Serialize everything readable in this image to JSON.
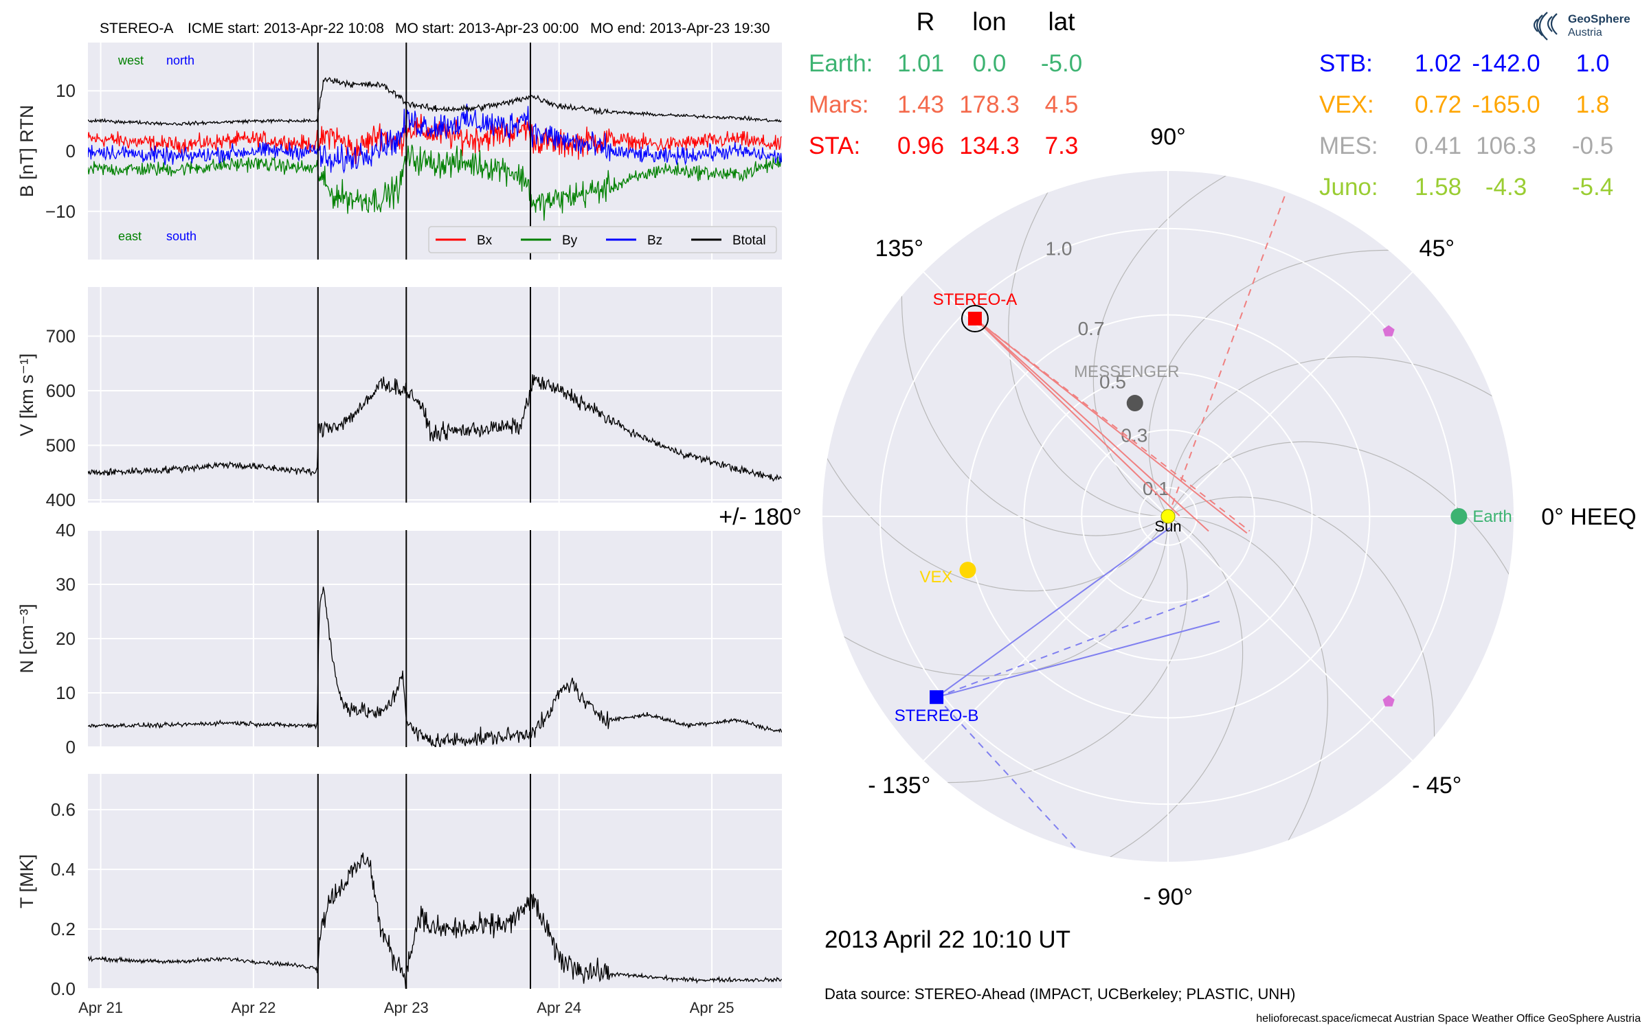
{
  "header": {
    "spacecraft": "STEREO-A",
    "icme_start": "ICME start: 2013-Apr-22 10:08",
    "mo_start": "MO start: 2013-Apr-23 00:00",
    "mo_end": "MO end: 2013-Apr-23 19:30"
  },
  "colors": {
    "bx": "#ff0000",
    "by": "#008000",
    "bz": "#0000ff",
    "btotal": "#000000",
    "earth": "#3cb371",
    "mars": "#f4694b",
    "sta": "#ff0000",
    "stb": "#0000ff",
    "vex": "#ffa500",
    "mes": "#a9a9a9",
    "juno": "#9acd32",
    "sun": "#ffff00",
    "axes_bg": "#eaeaf2"
  },
  "chart_data": [
    {
      "type": "line",
      "panel": "magnetic-field",
      "ylabel": "B [nT] RTN",
      "ylim": [
        -18,
        18
      ],
      "yticks": [
        -10,
        0,
        10
      ],
      "ytick_labels": [
        "−10",
        "0",
        "10"
      ],
      "grid": true,
      "legend_position": "lower-right",
      "annotations": {
        "west": "west",
        "north": "north",
        "east": "east",
        "south": "south"
      },
      "event_lines_hours": [
        34.13,
        48.0,
        67.5
      ],
      "series": [
        {
          "name": "Bx",
          "x_hours": [
            0,
            12,
            24,
            34,
            36,
            40,
            44,
            47,
            48,
            52,
            58,
            64,
            67,
            68,
            72,
            80,
            88,
            100,
            106
          ],
          "values": [
            2,
            1,
            2,
            1,
            3,
            0,
            3,
            1,
            4,
            3,
            2,
            3,
            4,
            2,
            1,
            2,
            1,
            2,
            1
          ]
        },
        {
          "name": "By",
          "x_hours": [
            0,
            12,
            24,
            34,
            36,
            40,
            44,
            47,
            48,
            52,
            58,
            64,
            67,
            68,
            72,
            80,
            88,
            100,
            106
          ],
          "values": [
            -3,
            -3,
            -2,
            -3,
            -7,
            -8,
            -8,
            -6,
            -1,
            -2,
            -2,
            -3,
            -5,
            -9,
            -8,
            -6,
            -3,
            -4,
            -2
          ]
        },
        {
          "name": "Bz",
          "x_hours": [
            0,
            12,
            24,
            34,
            36,
            40,
            44,
            47,
            48,
            52,
            58,
            64,
            67,
            68,
            72,
            80,
            88,
            100,
            106
          ],
          "values": [
            0,
            -1,
            0,
            0,
            -2,
            -1,
            1,
            2,
            5,
            4,
            5,
            4,
            6,
            3,
            2,
            0,
            -1,
            0,
            -1
          ]
        },
        {
          "name": "Btotal",
          "x_hours": [
            0,
            12,
            24,
            34,
            35,
            40,
            44,
            47,
            48,
            52,
            58,
            64,
            67,
            68,
            72,
            80,
            88,
            100,
            106
          ],
          "values": [
            5,
            4.5,
            5,
            5,
            12,
            11,
            11,
            9,
            8,
            7,
            7,
            8,
            9,
            9,
            7.5,
            6.5,
            6,
            5.5,
            5
          ]
        }
      ]
    },
    {
      "type": "line",
      "panel": "speed",
      "ylabel": "V [km s⁻¹]",
      "ylim": [
        395,
        790
      ],
      "yticks": [
        400,
        500,
        600,
        700
      ],
      "grid": true,
      "event_lines_hours": [
        34.13,
        48.0,
        67.5
      ],
      "series": [
        {
          "name": "V",
          "x_hours": [
            0,
            10,
            20,
            30,
            34,
            34.2,
            38,
            42,
            44,
            48,
            50,
            52,
            54,
            60,
            66,
            67.5,
            68,
            70,
            74,
            78,
            84,
            90,
            96,
            102,
            106
          ],
          "values": [
            450,
            455,
            465,
            455,
            450,
            530,
            540,
            580,
            615,
            600,
            580,
            520,
            525,
            530,
            535,
            600,
            620,
            610,
            590,
            560,
            520,
            490,
            470,
            450,
            440
          ]
        }
      ]
    },
    {
      "type": "line",
      "panel": "density",
      "ylabel": "N [cm⁻³]",
      "ylim": [
        0,
        40
      ],
      "yticks": [
        0,
        10,
        20,
        30,
        40
      ],
      "grid": true,
      "event_lines_hours": [
        34.13,
        48.0,
        67.5
      ],
      "series": [
        {
          "name": "N",
          "x_hours": [
            0,
            10,
            20,
            30,
            34,
            34.3,
            35,
            36,
            37,
            38,
            40,
            44,
            46,
            47.5,
            48,
            49,
            52,
            58,
            64,
            67,
            70,
            72,
            74,
            76,
            80,
            86,
            92,
            100,
            106
          ],
          "values": [
            4,
            4,
            4.5,
            4,
            4,
            25,
            30,
            20,
            12,
            8,
            7,
            6,
            9,
            14,
            5,
            3,
            1,
            1.5,
            2,
            2.5,
            5,
            10,
            12,
            8,
            5,
            6,
            4,
            5,
            3
          ]
        }
      ]
    },
    {
      "type": "line",
      "panel": "temperature",
      "ylabel": "T [MK]",
      "ylim": [
        0,
        0.72
      ],
      "yticks": [
        0.0,
        0.2,
        0.4,
        0.6
      ],
      "ytick_labels": [
        "0.0",
        "0.2",
        "0.4",
        "0.6"
      ],
      "xtick_labels": [
        "Apr 21",
        "Apr 22",
        "Apr 23",
        "Apr 24",
        "Apr 25"
      ],
      "xtick_hours": [
        0,
        24,
        48,
        72,
        96
      ],
      "grid": true,
      "event_lines_hours": [
        34.13,
        48.0,
        67.5
      ],
      "series": [
        {
          "name": "T",
          "x_hours": [
            0,
            10,
            20,
            30,
            34,
            34.5,
            36,
            38,
            40,
            42,
            44,
            46,
            48,
            50,
            52,
            58,
            64,
            66,
            67.5,
            69,
            72,
            76,
            80,
            86,
            92,
            100,
            106
          ],
          "values": [
            0.1,
            0.09,
            0.1,
            0.08,
            0.07,
            0.2,
            0.3,
            0.35,
            0.4,
            0.45,
            0.2,
            0.1,
            0.05,
            0.25,
            0.2,
            0.2,
            0.22,
            0.25,
            0.3,
            0.25,
            0.1,
            0.06,
            0.05,
            0.04,
            0.03,
            0.03,
            0.03
          ]
        }
      ]
    },
    {
      "type": "scatter",
      "panel": "heliospheric-orbit-polar",
      "projection": "polar",
      "rlim": [
        0,
        1.2
      ],
      "r_ticks": [
        "0.1",
        "0.3",
        "0.5",
        "0.7",
        "1.0"
      ],
      "r_tick_values": [
        0.1,
        0.3,
        0.5,
        0.7,
        1.0
      ],
      "angle_labels": [
        {
          "deg": 0,
          "label": "0° HEEQ"
        },
        {
          "deg": 45,
          "label": "45°"
        },
        {
          "deg": 90,
          "label": "90°"
        },
        {
          "deg": 135,
          "label": "135°"
        },
        {
          "deg": 180,
          "label": "+/- 180°"
        },
        {
          "deg": -135,
          "label": "- 135°"
        },
        {
          "deg": -90,
          "label": "- 90°"
        },
        {
          "deg": -45,
          "label": "- 45°"
        }
      ],
      "bodies": [
        {
          "name": "Sun",
          "label": "Sun",
          "r": 0.0,
          "lon": 0.0,
          "color": "#ffff00",
          "marker": "circle"
        },
        {
          "name": "Earth",
          "label": "Earth",
          "r": 1.01,
          "lon": 0.0,
          "color": "#3cb371",
          "marker": "circle"
        },
        {
          "name": "STEREO-A",
          "label": "STEREO-A",
          "r": 0.96,
          "lon": 134.3,
          "color": "#ff0000",
          "marker": "square"
        },
        {
          "name": "STEREO-B",
          "label": "STEREO-B",
          "r": 1.02,
          "lon": -142.0,
          "color": "#0000ff",
          "marker": "square"
        },
        {
          "name": "VEX",
          "label": "VEX",
          "r": 0.72,
          "lon": -165.0,
          "color": "#ffd700",
          "marker": "circle"
        },
        {
          "name": "MESSENGER",
          "label": "MESSENGER",
          "r": 0.41,
          "lon": 106.3,
          "color": "#555555",
          "marker": "circle"
        },
        {
          "name": "Juno-1",
          "label": "",
          "r": 1.0,
          "lon": 40.0,
          "color": "#da70d6",
          "marker": "pentagon"
        },
        {
          "name": "Juno-2",
          "label": "",
          "r": 1.0,
          "lon": -40.0,
          "color": "#da70d6",
          "marker": "pentagon"
        }
      ],
      "table_headers": [
        "R",
        "lon",
        "lat"
      ],
      "table_left": [
        {
          "label": "Earth:",
          "r": "1.01",
          "lon": "0.0",
          "lat": "-5.0",
          "color": "#3cb371"
        },
        {
          "label": "Mars:",
          "r": "1.43",
          "lon": "178.3",
          "lat": "4.5",
          "color": "#f4694b"
        },
        {
          "label": "STA:",
          "r": "0.96",
          "lon": "134.3",
          "lat": "7.3",
          "color": "#ff0000"
        }
      ],
      "table_right": [
        {
          "label": "STB:",
          "r": "1.02",
          "lon": "-142.0",
          "lat": "1.0",
          "color": "#0000ff"
        },
        {
          "label": "VEX:",
          "r": "0.72",
          "lon": "-165.0",
          "lat": "1.8",
          "color": "#ffa500"
        },
        {
          "label": "MES:",
          "r": "0.41",
          "lon": "106.3",
          "lat": "-0.5",
          "color": "#a9a9a9"
        },
        {
          "label": "Juno:",
          "r": "1.58",
          "lon": "-4.3",
          "lat": "-5.4",
          "color": "#9acd32"
        }
      ]
    }
  ],
  "footer": {
    "datetime": "2013 April 22  10:10 UT",
    "data_source": "Data source: STEREO-Ahead (IMPACT, UCBerkeley; PLASTIC, UNH)",
    "credits": "helioforecast.space/icmecat   Austrian Space Weather Office   GeoSphere Austria"
  },
  "logo": {
    "line1": "GeoSphere",
    "line2": "Austria"
  }
}
